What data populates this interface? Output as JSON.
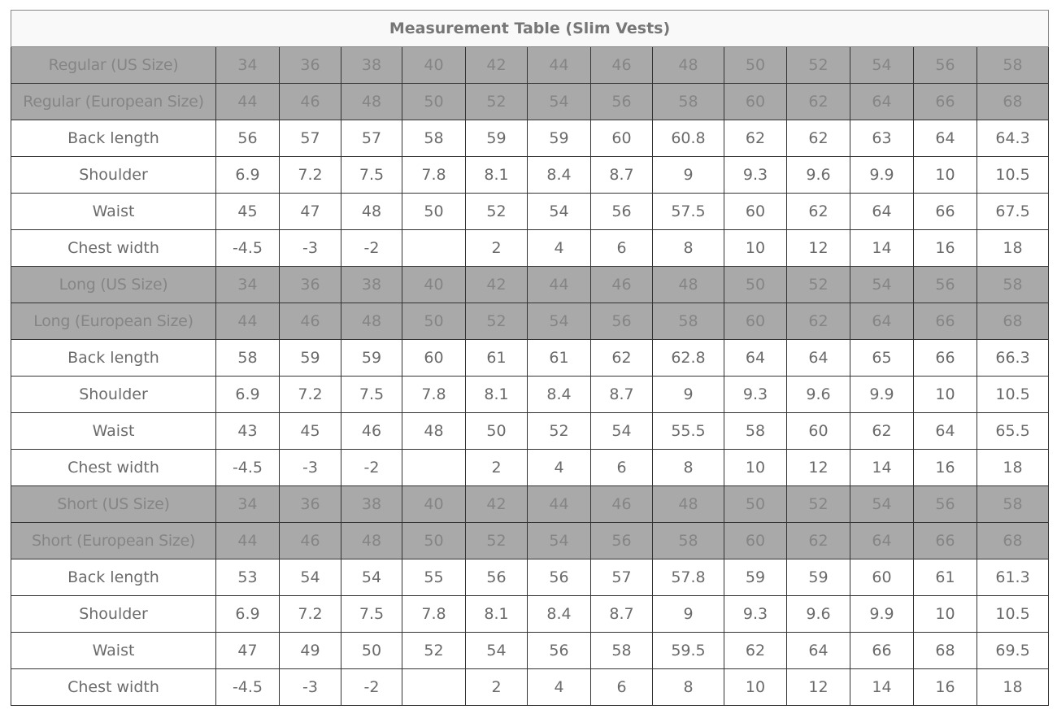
{
  "title": "Measurement Table (Slim Vests)",
  "colors": {
    "header_bg": "#a9a9a9",
    "header_text": "#858585",
    "body_text": "#6b6b6b",
    "border": "#333333"
  },
  "sections": [
    {
      "us_label": "Regular (US Size)",
      "us": [
        "34",
        "36",
        "38",
        "40",
        "42",
        "44",
        "46",
        "48",
        "50",
        "52",
        "54",
        "56",
        "58"
      ],
      "eu_label": "Regular (European Size)",
      "eu": [
        "44",
        "46",
        "48",
        "50",
        "52",
        "54",
        "56",
        "58",
        "60",
        "62",
        "64",
        "66",
        "68"
      ],
      "rows": [
        {
          "label": "Back length",
          "values": [
            "56",
            "57",
            "57",
            "58",
            "59",
            "59",
            "60",
            "60.8",
            "62",
            "62",
            "63",
            "64",
            "64.3"
          ]
        },
        {
          "label": "Shoulder",
          "values": [
            "6.9",
            "7.2",
            "7.5",
            "7.8",
            "8.1",
            "8.4",
            "8.7",
            "9",
            "9.3",
            "9.6",
            "9.9",
            "10",
            "10.5"
          ]
        },
        {
          "label": "Waist",
          "values": [
            "45",
            "47",
            "48",
            "50",
            "52",
            "54",
            "56",
            "57.5",
            "60",
            "62",
            "64",
            "66",
            "67.5"
          ]
        },
        {
          "label": "Chest width",
          "values": [
            "-4.5",
            "-3",
            "-2",
            "",
            "2",
            "4",
            "6",
            "8",
            "10",
            "12",
            "14",
            "16",
            "18"
          ]
        }
      ]
    },
    {
      "us_label": "Long (US Size)",
      "us": [
        "34",
        "36",
        "38",
        "40",
        "42",
        "44",
        "46",
        "48",
        "50",
        "52",
        "54",
        "56",
        "58"
      ],
      "eu_label": "Long (European Size)",
      "eu": [
        "44",
        "46",
        "48",
        "50",
        "52",
        "54",
        "56",
        "58",
        "60",
        "62",
        "64",
        "66",
        "68"
      ],
      "rows": [
        {
          "label": "Back length",
          "values": [
            "58",
            "59",
            "59",
            "60",
            "61",
            "61",
            "62",
            "62.8",
            "64",
            "64",
            "65",
            "66",
            "66.3"
          ]
        },
        {
          "label": "Shoulder",
          "values": [
            "6.9",
            "7.2",
            "7.5",
            "7.8",
            "8.1",
            "8.4",
            "8.7",
            "9",
            "9.3",
            "9.6",
            "9.9",
            "10",
            "10.5"
          ]
        },
        {
          "label": "Waist",
          "values": [
            "43",
            "45",
            "46",
            "48",
            "50",
            "52",
            "54",
            "55.5",
            "58",
            "60",
            "62",
            "64",
            "65.5"
          ]
        },
        {
          "label": "Chest width",
          "values": [
            "-4.5",
            "-3",
            "-2",
            "",
            "2",
            "4",
            "6",
            "8",
            "10",
            "12",
            "14",
            "16",
            "18"
          ]
        }
      ]
    },
    {
      "us_label": "Short (US Size)",
      "us": [
        "34",
        "36",
        "38",
        "40",
        "42",
        "44",
        "46",
        "48",
        "50",
        "52",
        "54",
        "56",
        "58"
      ],
      "eu_label": "Short (European Size)",
      "eu": [
        "44",
        "46",
        "48",
        "50",
        "52",
        "54",
        "56",
        "58",
        "60",
        "62",
        "64",
        "66",
        "68"
      ],
      "rows": [
        {
          "label": "Back length",
          "values": [
            "53",
            "54",
            "54",
            "55",
            "56",
            "56",
            "57",
            "57.8",
            "59",
            "59",
            "60",
            "61",
            "61.3"
          ]
        },
        {
          "label": "Shoulder",
          "values": [
            "6.9",
            "7.2",
            "7.5",
            "7.8",
            "8.1",
            "8.4",
            "8.7",
            "9",
            "9.3",
            "9.6",
            "9.9",
            "10",
            "10.5"
          ]
        },
        {
          "label": "Waist",
          "values": [
            "47",
            "49",
            "50",
            "52",
            "54",
            "56",
            "58",
            "59.5",
            "62",
            "64",
            "66",
            "68",
            "69.5"
          ]
        },
        {
          "label": "Chest width",
          "values": [
            "-4.5",
            "-3",
            "-2",
            "",
            "2",
            "4",
            "6",
            "8",
            "10",
            "12",
            "14",
            "16",
            "18"
          ]
        }
      ]
    }
  ]
}
